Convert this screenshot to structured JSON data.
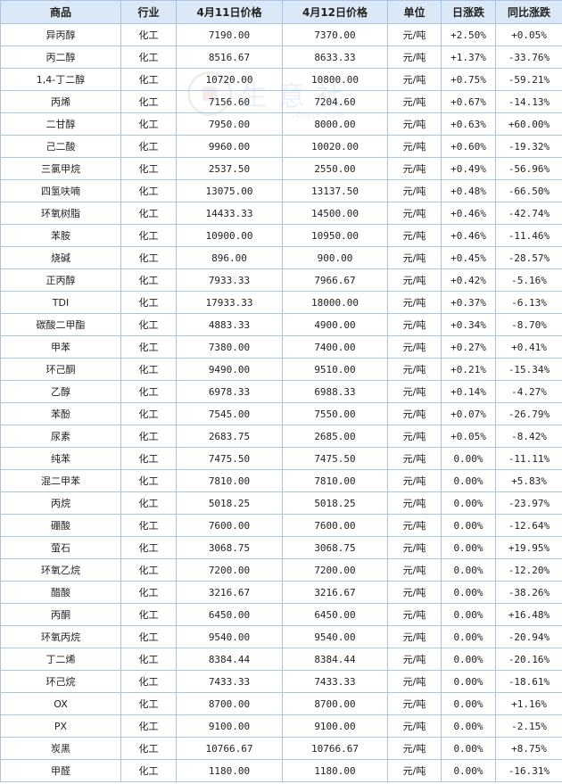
{
  "headers": [
    "商品",
    "行业",
    "4月11日价格",
    "4月12日价格",
    "单位",
    "日涨跌",
    "同比涨跌"
  ],
  "watermark": {
    "text": "生意社",
    "url": "100ppi.com"
  },
  "rows": [
    {
      "name": "异丙醇",
      "industry": "化工",
      "price1": "7190.00",
      "price2": "7370.00",
      "unit": "元/吨",
      "daily": "+2.50%",
      "yoy": "+0.05%"
    },
    {
      "name": "丙二醇",
      "industry": "化工",
      "price1": "8516.67",
      "price2": "8633.33",
      "unit": "元/吨",
      "daily": "+1.37%",
      "yoy": "-33.76%"
    },
    {
      "name": "1,4-丁二醇",
      "industry": "化工",
      "price1": "10720.00",
      "price2": "10800.00",
      "unit": "元/吨",
      "daily": "+0.75%",
      "yoy": "-59.21%"
    },
    {
      "name": "丙烯",
      "industry": "化工",
      "price1": "7156.60",
      "price2": "7204.60",
      "unit": "元/吨",
      "daily": "+0.67%",
      "yoy": "-14.13%"
    },
    {
      "name": "二甘醇",
      "industry": "化工",
      "price1": "7950.00",
      "price2": "8000.00",
      "unit": "元/吨",
      "daily": "+0.63%",
      "yoy": "+60.00%"
    },
    {
      "name": "己二酸",
      "industry": "化工",
      "price1": "9960.00",
      "price2": "10020.00",
      "unit": "元/吨",
      "daily": "+0.60%",
      "yoy": "-19.32%"
    },
    {
      "name": "三氯甲烷",
      "industry": "化工",
      "price1": "2537.50",
      "price2": "2550.00",
      "unit": "元/吨",
      "daily": "+0.49%",
      "yoy": "-56.96%"
    },
    {
      "name": "四氢呋喃",
      "industry": "化工",
      "price1": "13075.00",
      "price2": "13137.50",
      "unit": "元/吨",
      "daily": "+0.48%",
      "yoy": "-66.50%"
    },
    {
      "name": "环氧树脂",
      "industry": "化工",
      "price1": "14433.33",
      "price2": "14500.00",
      "unit": "元/吨",
      "daily": "+0.46%",
      "yoy": "-42.74%"
    },
    {
      "name": "苯胺",
      "industry": "化工",
      "price1": "10900.00",
      "price2": "10950.00",
      "unit": "元/吨",
      "daily": "+0.46%",
      "yoy": "-11.46%"
    },
    {
      "name": "烧碱",
      "industry": "化工",
      "price1": "896.00",
      "price2": "900.00",
      "unit": "元/吨",
      "daily": "+0.45%",
      "yoy": "-28.57%"
    },
    {
      "name": "正丙醇",
      "industry": "化工",
      "price1": "7933.33",
      "price2": "7966.67",
      "unit": "元/吨",
      "daily": "+0.42%",
      "yoy": "-5.16%"
    },
    {
      "name": "TDI",
      "industry": "化工",
      "price1": "17933.33",
      "price2": "18000.00",
      "unit": "元/吨",
      "daily": "+0.37%",
      "yoy": "-6.13%"
    },
    {
      "name": "碳酸二甲酯",
      "industry": "化工",
      "price1": "4883.33",
      "price2": "4900.00",
      "unit": "元/吨",
      "daily": "+0.34%",
      "yoy": "-8.70%"
    },
    {
      "name": "甲苯",
      "industry": "化工",
      "price1": "7380.00",
      "price2": "7400.00",
      "unit": "元/吨",
      "daily": "+0.27%",
      "yoy": "+0.41%"
    },
    {
      "name": "环己酮",
      "industry": "化工",
      "price1": "9490.00",
      "price2": "9510.00",
      "unit": "元/吨",
      "daily": "+0.21%",
      "yoy": "-15.34%"
    },
    {
      "name": "乙醇",
      "industry": "化工",
      "price1": "6978.33",
      "price2": "6988.33",
      "unit": "元/吨",
      "daily": "+0.14%",
      "yoy": "-4.27%"
    },
    {
      "name": "苯酚",
      "industry": "化工",
      "price1": "7545.00",
      "price2": "7550.00",
      "unit": "元/吨",
      "daily": "+0.07%",
      "yoy": "-26.79%"
    },
    {
      "name": "尿素",
      "industry": "化工",
      "price1": "2683.75",
      "price2": "2685.00",
      "unit": "元/吨",
      "daily": "+0.05%",
      "yoy": "-8.42%"
    },
    {
      "name": "纯苯",
      "industry": "化工",
      "price1": "7475.50",
      "price2": "7475.50",
      "unit": "元/吨",
      "daily": "0.00%",
      "yoy": "-11.11%"
    },
    {
      "name": "混二甲苯",
      "industry": "化工",
      "price1": "7810.00",
      "price2": "7810.00",
      "unit": "元/吨",
      "daily": "0.00%",
      "yoy": "+5.83%"
    },
    {
      "name": "丙烷",
      "industry": "化工",
      "price1": "5018.25",
      "price2": "5018.25",
      "unit": "元/吨",
      "daily": "0.00%",
      "yoy": "-23.97%"
    },
    {
      "name": "硼酸",
      "industry": "化工",
      "price1": "7600.00",
      "price2": "7600.00",
      "unit": "元/吨",
      "daily": "0.00%",
      "yoy": "-12.64%"
    },
    {
      "name": "萤石",
      "industry": "化工",
      "price1": "3068.75",
      "price2": "3068.75",
      "unit": "元/吨",
      "daily": "0.00%",
      "yoy": "+19.95%"
    },
    {
      "name": "环氧乙烷",
      "industry": "化工",
      "price1": "7200.00",
      "price2": "7200.00",
      "unit": "元/吨",
      "daily": "0.00%",
      "yoy": "-12.20%"
    },
    {
      "name": "醋酸",
      "industry": "化工",
      "price1": "3216.67",
      "price2": "3216.67",
      "unit": "元/吨",
      "daily": "0.00%",
      "yoy": "-38.26%"
    },
    {
      "name": "丙酮",
      "industry": "化工",
      "price1": "6450.00",
      "price2": "6450.00",
      "unit": "元/吨",
      "daily": "0.00%",
      "yoy": "+16.48%"
    },
    {
      "name": "环氧丙烷",
      "industry": "化工",
      "price1": "9540.00",
      "price2": "9540.00",
      "unit": "元/吨",
      "daily": "0.00%",
      "yoy": "-20.94%"
    },
    {
      "name": "丁二烯",
      "industry": "化工",
      "price1": "8384.44",
      "price2": "8384.44",
      "unit": "元/吨",
      "daily": "0.00%",
      "yoy": "-20.16%"
    },
    {
      "name": "环己烷",
      "industry": "化工",
      "price1": "7433.33",
      "price2": "7433.33",
      "unit": "元/吨",
      "daily": "0.00%",
      "yoy": "-18.61%"
    },
    {
      "name": "OX",
      "industry": "化工",
      "price1": "8700.00",
      "price2": "8700.00",
      "unit": "元/吨",
      "daily": "0.00%",
      "yoy": "+1.16%"
    },
    {
      "name": "PX",
      "industry": "化工",
      "price1": "9100.00",
      "price2": "9100.00",
      "unit": "元/吨",
      "daily": "0.00%",
      "yoy": "-2.15%"
    },
    {
      "name": "炭黑",
      "industry": "化工",
      "price1": "10766.67",
      "price2": "10766.67",
      "unit": "元/吨",
      "daily": "0.00%",
      "yoy": "+8.75%"
    },
    {
      "name": "甲醛",
      "industry": "化工",
      "price1": "1180.00",
      "price2": "1180.00",
      "unit": "元/吨",
      "daily": "0.00%",
      "yoy": "-16.31%"
    }
  ],
  "colors": {
    "up": "#e60000",
    "down": "#008000",
    "header_bg": "#dbe8f7",
    "border": "#a9c4e2",
    "name_link": "#2f4f9c"
  }
}
